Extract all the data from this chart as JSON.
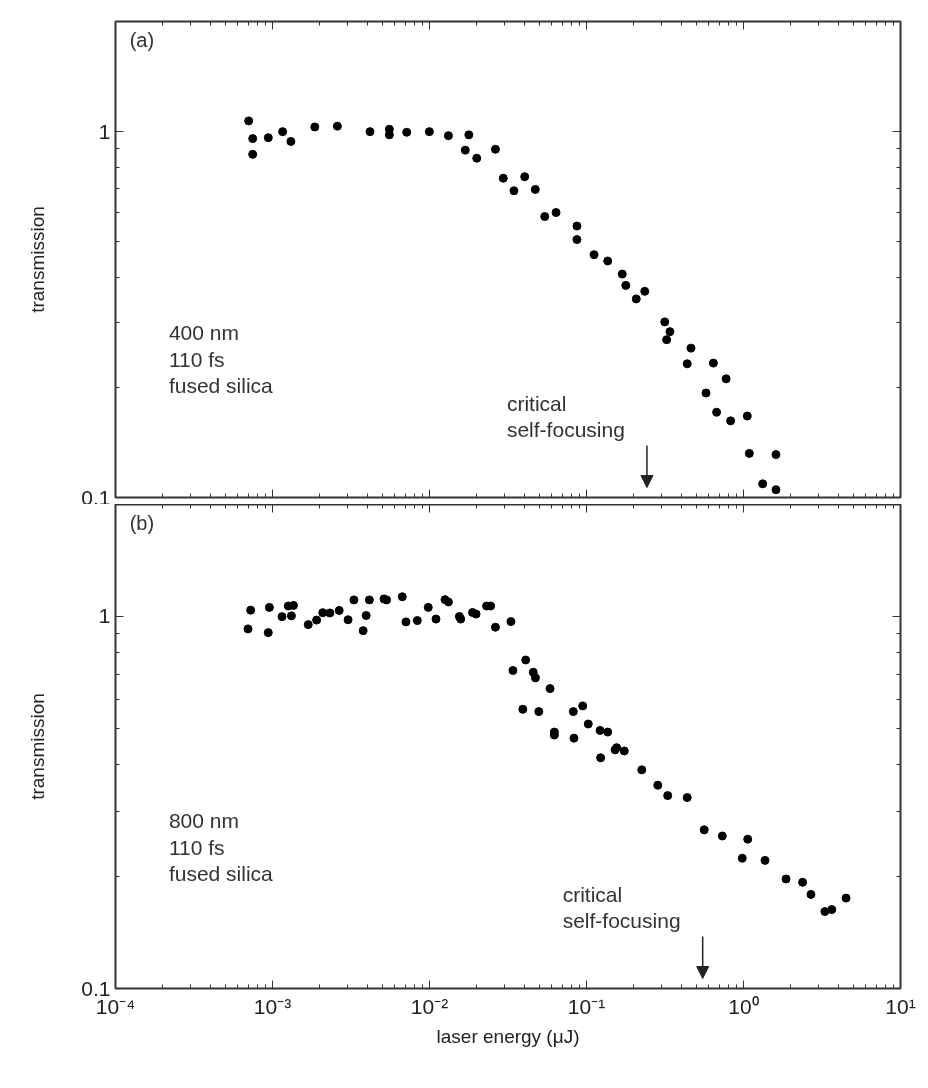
{
  "chart_data": [
    {
      "type": "scatter",
      "ylabel": "transmission",
      "marker": "circle",
      "grid": false,
      "log": "xy",
      "tick_labels": "y",
      "xlim": [
        0.0001,
        10
      ],
      "ylim": [
        0.1,
        2
      ],
      "xticks": [
        {
          "value": 0.0001,
          "label": null
        },
        {
          "value": 0.001,
          "label": null
        },
        {
          "value": 0.01,
          "label": null
        },
        {
          "value": 0.1,
          "label": null
        },
        {
          "value": 1,
          "label": null
        },
        {
          "value": 10,
          "label": null
        }
      ],
      "yticks": [
        0.1,
        1
      ],
      "annotations": [
        "(a)",
        "400 nm\n110 fs\nfused silica",
        "critical\nself-focusing"
      ],
      "series": [
        {
          "color": "#000000",
          "x": [
            0.000705,
            0.000748,
            0.000748,
            0.00094,
            0.00116,
            0.00131,
            0.00186,
            0.00259,
            0.00418,
            0.00555,
            0.00555,
            0.00716,
            0.00998,
            0.0132,
            0.0178,
            0.0169,
            0.02,
            0.0263,
            0.0295,
            0.0345,
            0.0404,
            0.0472,
            0.0542,
            0.064,
            0.0869,
            0.0869,
            0.1117,
            0.1365,
            0.169,
            0.178,
            0.2075,
            0.235,
            0.315,
            0.34,
            0.324,
            0.463,
            0.438,
            0.643,
            0.775,
            0.577,
            0.674,
            0.828,
            1.057,
            1.089,
            1.61,
            1.325,
            1.61
          ],
          "values": [
            1.07,
            0.957,
            0.867,
            0.963,
            1.0,
            0.94,
            1.03,
            1.035,
            1.0,
            1.015,
            0.98,
            0.996,
            1.0,
            0.975,
            0.98,
            0.89,
            0.846,
            0.895,
            0.746,
            0.689,
            0.753,
            0.695,
            0.586,
            0.601,
            0.552,
            0.507,
            0.461,
            0.443,
            0.408,
            0.38,
            0.349,
            0.366,
            0.302,
            0.284,
            0.27,
            0.256,
            0.232,
            0.233,
            0.211,
            0.193,
            0.171,
            0.162,
            0.167,
            0.132,
            0.131,
            0.109,
            0.105
          ]
        }
      ]
    },
    {
      "type": "scatter",
      "xlabel": "laser energy (μJ)",
      "ylabel": "transmission",
      "marker": "circle",
      "grid": false,
      "log": "xy",
      "xlim": [
        0.0001,
        10
      ],
      "ylim": [
        0.1,
        2
      ],
      "xticks": [
        {
          "value": 0.0001,
          "label": "10⁻⁴"
        },
        {
          "value": 0.001,
          "label": "10⁻³"
        },
        {
          "value": 0.01,
          "label": "10⁻²"
        },
        {
          "value": 0.1,
          "label": "10⁻¹"
        },
        {
          "value": 1,
          "label": "10⁰"
        },
        {
          "value": 10,
          "label": "10¹"
        }
      ],
      "yticks": [
        0.1,
        1
      ],
      "annotations": [
        "(b)",
        "800 nm\n110 fs\nfused silica",
        "critical\nself-focusing"
      ],
      "series": [
        {
          "color": "#000000",
          "x": [
            0.000726,
            0.000698,
            0.000955,
            0.00094,
            0.00115,
            0.00126,
            0.00136,
            0.00132,
            0.00169,
            0.00191,
            0.00209,
            0.00232,
            0.00266,
            0.00303,
            0.0033,
            0.00414,
            0.00395,
            0.00378,
            0.00513,
            0.00533,
            0.00671,
            0.00708,
            0.00836,
            0.00982,
            0.011,
            0.01256,
            0.0132,
            0.0155,
            0.0158,
            0.0188,
            0.0198,
            0.0231,
            0.0245,
            0.0263,
            0.033,
            0.034,
            0.041,
            0.0458,
            0.0473,
            0.0586,
            0.0393,
            0.0497,
            0.0624,
            0.0624,
            0.0824,
            0.0946,
            0.0832,
            0.1026,
            0.122,
            0.1365,
            0.123,
            0.152,
            0.1556,
            0.174,
            0.225,
            0.2845,
            0.329,
            0.438,
            0.562,
            0.733,
            1.064,
            0.982,
            1.371,
            1.866,
            2.38,
            2.69,
            3.3,
            3.65,
            4.5
          ],
          "values": [
            1.04,
            0.926,
            1.058,
            0.905,
            0.999,
            1.067,
            1.071,
            1.004,
            0.951,
            0.978,
            1.024,
            1.022,
            1.038,
            0.98,
            1.108,
            1.108,
            1.006,
            0.916,
            1.115,
            1.108,
            1.13,
            0.967,
            0.975,
            1.058,
            0.984,
            1.11,
            1.094,
            1.0,
            0.984,
            1.025,
            1.015,
            1.067,
            1.067,
            0.936,
            0.969,
            0.716,
            0.764,
            0.708,
            0.684,
            0.64,
            0.563,
            0.555,
            0.489,
            0.48,
            0.555,
            0.575,
            0.471,
            0.514,
            0.494,
            0.489,
            0.417,
            0.438,
            0.444,
            0.435,
            0.387,
            0.352,
            0.33,
            0.326,
            0.267,
            0.257,
            0.252,
            0.224,
            0.221,
            0.197,
            0.193,
            0.179,
            0.161,
            0.163,
            0.175
          ]
        }
      ]
    }
  ]
}
